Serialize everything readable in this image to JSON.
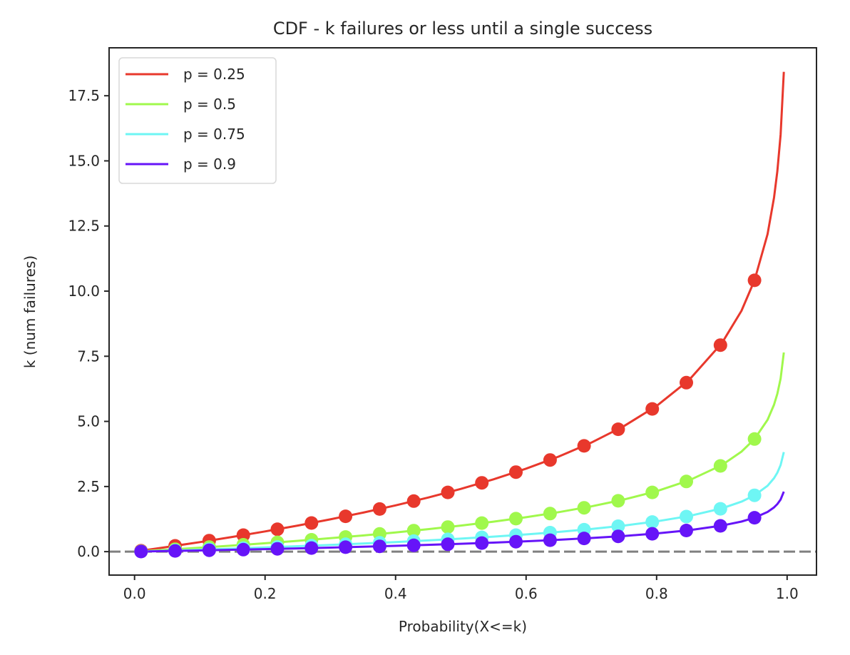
{
  "chart_data": {
    "type": "line",
    "title": "CDF - k failures or less until a single success",
    "xlabel": "Probability(X<=k)",
    "ylabel": "k (num failures)",
    "xlim": [
      -0.039,
      1.045
    ],
    "ylim": [
      -0.9,
      19.34
    ],
    "xticks": [
      0.0,
      0.2,
      0.4,
      0.6,
      0.8,
      1.0
    ],
    "xtick_labels": [
      "0.0",
      "0.2",
      "0.4",
      "0.6",
      "0.8",
      "1.0"
    ],
    "yticks": [
      0.0,
      2.5,
      5.0,
      7.5,
      10.0,
      12.5,
      15.0,
      17.5
    ],
    "ytick_labels": [
      "0.0",
      "2.5",
      "5.0",
      "7.5",
      "10.0",
      "12.5",
      "15.0",
      "17.5"
    ],
    "grid": false,
    "legend_position": "top-left",
    "reference_line": {
      "y": 0.0,
      "style": "dashed",
      "color": "#808080"
    },
    "line_x": [
      0.01,
      0.05,
      0.1,
      0.15,
      0.2,
      0.25,
      0.3,
      0.35,
      0.4,
      0.45,
      0.5,
      0.55,
      0.6,
      0.65,
      0.7,
      0.75,
      0.8,
      0.85,
      0.9,
      0.93,
      0.95,
      0.97,
      0.98,
      0.985,
      0.99,
      0.995
    ],
    "marker_x": [
      0.01,
      0.0622,
      0.1144,
      0.1667,
      0.2189,
      0.2711,
      0.3233,
      0.3756,
      0.4278,
      0.48,
      0.5322,
      0.5844,
      0.6367,
      0.6889,
      0.7411,
      0.7933,
      0.8456,
      0.8978,
      0.95
    ],
    "series": [
      {
        "name": "p = 0.25",
        "color": "#e8382c",
        "line_y": [
          0.035,
          0.178,
          0.366,
          0.565,
          0.776,
          1.0,
          1.24,
          1.497,
          1.776,
          2.078,
          2.409,
          2.776,
          3.185,
          3.649,
          4.185,
          4.819,
          5.595,
          6.594,
          8.004,
          9.244,
          10.413,
          12.189,
          13.598,
          14.598,
          16.008,
          18.417
        ],
        "marker_y": [
          0.035,
          0.223,
          0.422,
          0.634,
          0.859,
          1.099,
          1.358,
          1.637,
          1.94,
          2.273,
          2.641,
          3.052,
          3.519,
          4.059,
          4.697,
          5.48,
          6.488,
          7.927,
          10.413
        ]
      },
      {
        "name": "p = 0.5",
        "color": "#a0f84c",
        "line_y": [
          0.015,
          0.074,
          0.152,
          0.234,
          0.322,
          0.415,
          0.515,
          0.621,
          0.737,
          0.863,
          1.0,
          1.152,
          1.322,
          1.515,
          1.737,
          2.0,
          2.322,
          2.737,
          3.322,
          3.837,
          4.322,
          5.059,
          5.644,
          6.059,
          6.644,
          7.644
        ],
        "marker_y": [
          0.015,
          0.093,
          0.175,
          0.263,
          0.356,
          0.456,
          0.563,
          0.679,
          0.805,
          0.943,
          1.096,
          1.267,
          1.461,
          1.684,
          1.95,
          2.274,
          2.693,
          3.29,
          4.322
        ]
      },
      {
        "name": "p = 0.75",
        "color": "#6ef6f4",
        "line_y": [
          0.007,
          0.037,
          0.076,
          0.117,
          0.161,
          0.208,
          0.257,
          0.311,
          0.368,
          0.431,
          0.5,
          0.576,
          0.661,
          0.757,
          0.868,
          1.0,
          1.161,
          1.368,
          1.661,
          1.918,
          2.161,
          2.529,
          2.822,
          3.029,
          3.322,
          3.822
        ],
        "marker_y": [
          0.007,
          0.046,
          0.088,
          0.132,
          0.178,
          0.228,
          0.282,
          0.34,
          0.403,
          0.472,
          0.548,
          0.633,
          0.73,
          0.842,
          0.975,
          1.137,
          1.346,
          1.645,
          2.161
        ]
      },
      {
        "name": "p = 0.9",
        "color": "#6614f8",
        "line_y": [
          0.004,
          0.022,
          0.046,
          0.071,
          0.097,
          0.125,
          0.155,
          0.187,
          0.222,
          0.26,
          0.301,
          0.347,
          0.398,
          0.456,
          0.523,
          0.602,
          0.699,
          0.824,
          1.0,
          1.155,
          1.301,
          1.523,
          1.699,
          1.824,
          2.0,
          2.301
        ],
        "marker_y": [
          0.004,
          0.028,
          0.053,
          0.079,
          0.107,
          0.137,
          0.17,
          0.205,
          0.242,
          0.284,
          0.33,
          0.381,
          0.44,
          0.507,
          0.587,
          0.685,
          0.811,
          0.99,
          1.301
        ]
      }
    ]
  }
}
